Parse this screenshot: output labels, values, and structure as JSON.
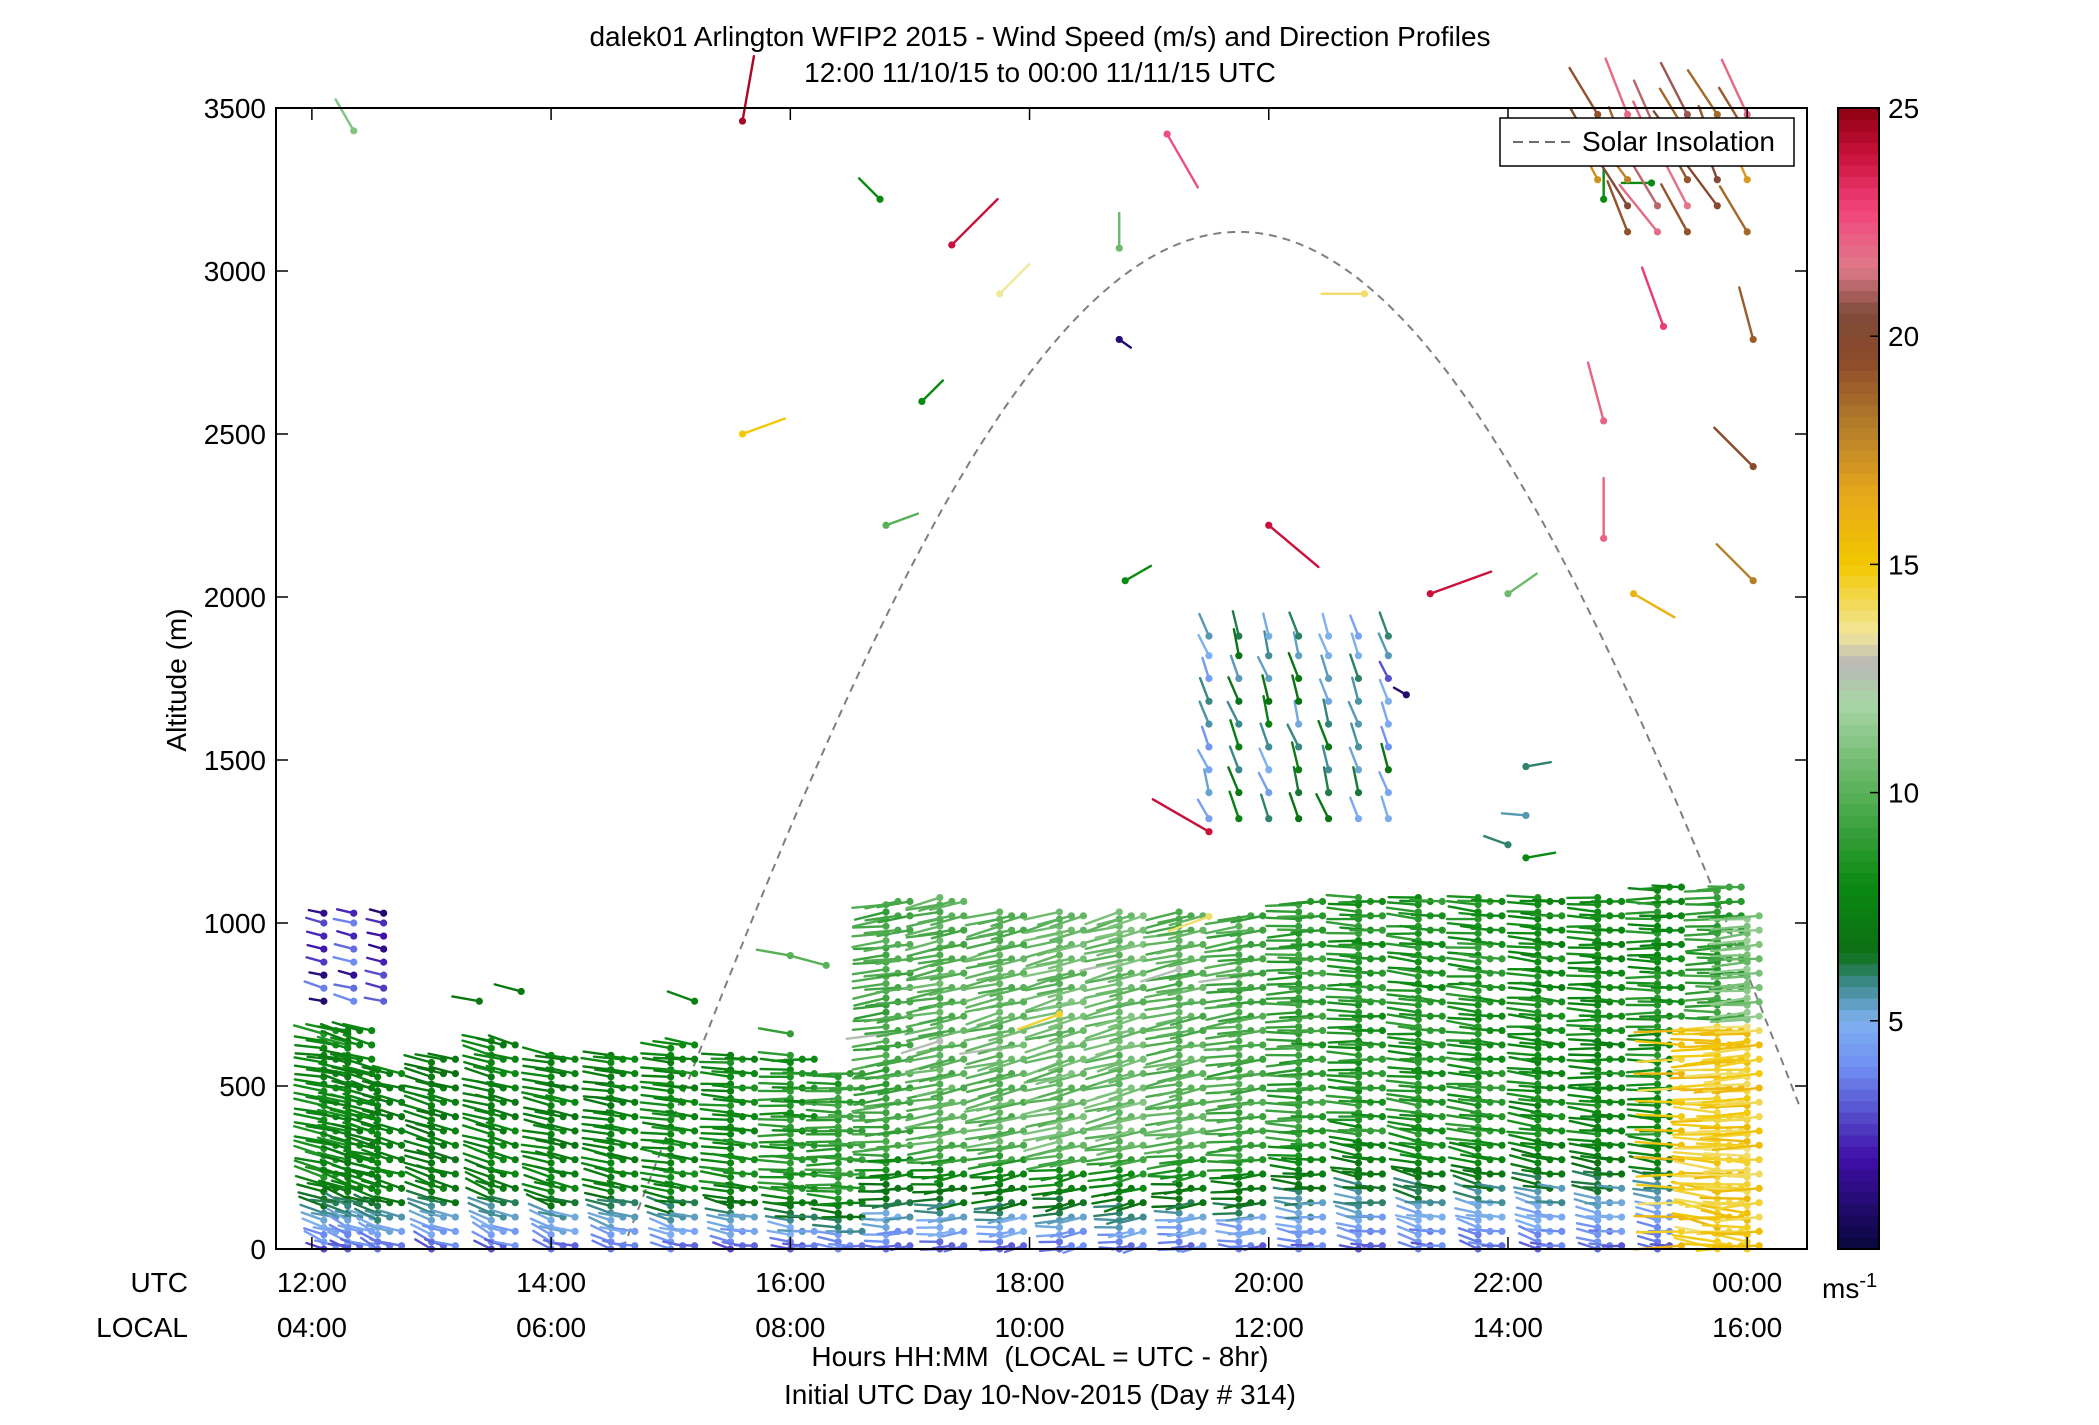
{
  "chart_data": {
    "type": "wind-barb-profile",
    "title": "dalek01 Arlington WFIP2 2015 - Wind Speed (m/s) and Direction Profiles",
    "subtitle": "12:00 11/10/15 to 00:00 11/11/15  UTC",
    "ylabel": "Altitude (m)",
    "xlabel": "Hours HH:MM  (LOCAL = UTC - 8hr)",
    "xlabel2": "Initial UTC Day 10-Nov-2015 (Day # 314)",
    "row_labels": {
      "utc": "UTC",
      "local": "LOCAL"
    },
    "x_ticks_utc": [
      "12:00",
      "14:00",
      "16:00",
      "18:00",
      "20:00",
      "22:00",
      "00:00"
    ],
    "x_ticks_local": [
      "04:00",
      "06:00",
      "08:00",
      "10:00",
      "12:00",
      "14:00",
      "16:00"
    ],
    "xlim_hours": [
      11.7,
      24.5
    ],
    "y_ticks": [
      "0",
      "500",
      "1000",
      "1500",
      "2000",
      "2500",
      "3000",
      "3500"
    ],
    "ylim": [
      0,
      3500
    ],
    "legend": {
      "label": "Solar Insolation",
      "placement": "top-right"
    },
    "colorbar": {
      "min": 0,
      "max": 25,
      "ticks": [
        "5",
        "10",
        "15",
        "20",
        "25"
      ],
      "unit": "ms",
      "unit_exp": "-1"
    },
    "solar_insolation_curve": {
      "peak_hour": 19.75,
      "peak_altitude": 3120,
      "zero_hours": [
        14.6,
        24.9
      ],
      "x_hours": [
        14.6,
        24.45
      ],
      "style": "dashed",
      "color": "#7f7f7f"
    },
    "barb_profiles": [
      {
        "hour": 12.1,
        "top": 680,
        "speed": 8.0,
        "dir": 280
      },
      {
        "hour": 12.3,
        "top": 660,
        "speed": 7.5,
        "dir": 285
      },
      {
        "hour": 12.55,
        "top": 560,
        "speed": 7.5,
        "dir": 285
      },
      {
        "hour": 13.0,
        "top": 590,
        "speed": 7.0,
        "dir": 285
      },
      {
        "hour": 13.5,
        "top": 640,
        "speed": 7.5,
        "dir": 285
      },
      {
        "hour": 14.0,
        "top": 600,
        "speed": 7.5,
        "dir": 282
      },
      {
        "hour": 14.5,
        "top": 600,
        "speed": 7.5,
        "dir": 280
      },
      {
        "hour": 15.0,
        "top": 620,
        "speed": 7.8,
        "dir": 278
      },
      {
        "hour": 15.5,
        "top": 610,
        "speed": 8.0,
        "dir": 276
      },
      {
        "hour": 16.0,
        "top": 610,
        "speed": 8.5,
        "dir": 272
      },
      {
        "hour": 16.4,
        "top": 540,
        "speed": 9.0,
        "dir": 270
      },
      {
        "hour": 16.8,
        "top": 1060,
        "speed": 9.5,
        "dir": 262
      },
      {
        "hour": 17.25,
        "top": 1080,
        "speed": 10.0,
        "dir": 258
      },
      {
        "hour": 17.75,
        "top": 1040,
        "speed": 10.2,
        "dir": 256
      },
      {
        "hour": 18.25,
        "top": 1050,
        "speed": 10.5,
        "dir": 255
      },
      {
        "hour": 18.75,
        "top": 1040,
        "speed": 10.5,
        "dir": 255
      },
      {
        "hour": 19.25,
        "top": 1050,
        "speed": 10.0,
        "dir": 258
      },
      {
        "hour": 19.75,
        "top": 1030,
        "speed": 9.5,
        "dir": 262
      },
      {
        "hour": 20.25,
        "top": 1060,
        "speed": 9.0,
        "dir": 268
      },
      {
        "hour": 20.75,
        "top": 1090,
        "speed": 8.5,
        "dir": 272
      },
      {
        "hour": 21.25,
        "top": 1080,
        "speed": 8.5,
        "dir": 275
      },
      {
        "hour": 21.75,
        "top": 1080,
        "speed": 8.5,
        "dir": 275
      },
      {
        "hour": 22.25,
        "top": 1080,
        "speed": 8.0,
        "dir": 275
      },
      {
        "hour": 22.75,
        "top": 1090,
        "speed": 8.0,
        "dir": 272
      },
      {
        "hour": 23.25,
        "top": 1100,
        "speed": 8.2,
        "dir": 270
      },
      {
        "hour": 23.75,
        "top": 1110,
        "speed": 9.0,
        "dir": 268
      },
      {
        "hour": 24.0,
        "top": 1020,
        "speed": 11.0,
        "dir": 265
      }
    ],
    "scattered_barbs": [
      {
        "hour": 12.35,
        "alt": 3430,
        "speed": 11.0,
        "dir": 330
      },
      {
        "hour": 15.6,
        "alt": 3460,
        "speed": 24.5,
        "dir": 10
      },
      {
        "hour": 16.75,
        "alt": 3220,
        "speed": 8.0,
        "dir": 315
      },
      {
        "hour": 17.35,
        "alt": 3080,
        "speed": 24.0,
        "dir": 45
      },
      {
        "hour": 17.75,
        "alt": 2930,
        "speed": 13.5,
        "dir": 45
      },
      {
        "hour": 18.75,
        "alt": 3070,
        "speed": 10.5,
        "dir": 0
      },
      {
        "hour": 18.75,
        "alt": 2790,
        "speed": 1.0,
        "dir": 125
      },
      {
        "hour": 19.15,
        "alt": 3420,
        "speed": 22.5,
        "dir": 150
      },
      {
        "hour": 17.1,
        "alt": 2600,
        "speed": 8.0,
        "dir": 45
      },
      {
        "hour": 15.6,
        "alt": 2500,
        "speed": 15.0,
        "dir": 70
      },
      {
        "hour": 16.8,
        "alt": 2220,
        "speed": 10.0,
        "dir": 70
      },
      {
        "hour": 18.8,
        "alt": 2050,
        "speed": 8.0,
        "dir": 60
      },
      {
        "hour": 20.0,
        "alt": 2220,
        "speed": 24.0,
        "dir": 130
      },
      {
        "hour": 20.8,
        "alt": 2930,
        "speed": 14.0,
        "dir": 270
      },
      {
        "hour": 21.35,
        "alt": 2010,
        "speed": 24.0,
        "dir": 70
      },
      {
        "hour": 22.0,
        "alt": 2010,
        "speed": 10.5,
        "dir": 55
      },
      {
        "hour": 23.05,
        "alt": 2010,
        "speed": 16.0,
        "dir": 120
      },
      {
        "hour": 22.8,
        "alt": 3220,
        "speed": 8.0,
        "dir": 0
      },
      {
        "hour": 23.2,
        "alt": 3270,
        "speed": 8.0,
        "dir": 270
      },
      {
        "hour": 23.3,
        "alt": 2830,
        "speed": 23.0,
        "dir": 340
      },
      {
        "hour": 22.8,
        "alt": 2540,
        "speed": 22.0,
        "dir": 345
      },
      {
        "hour": 22.8,
        "alt": 2180,
        "speed": 22.0,
        "dir": 0
      },
      {
        "hour": 24.05,
        "alt": 2400,
        "speed": 19.5,
        "dir": 315
      },
      {
        "hour": 24.05,
        "alt": 2050,
        "speed": 18.0,
        "dir": 315
      },
      {
        "hour": 24.05,
        "alt": 2790,
        "speed": 19.0,
        "dir": 345
      },
      {
        "hour": 21.15,
        "alt": 1700,
        "speed": 1.0,
        "dir": 300
      },
      {
        "hour": 19.5,
        "alt": 1280,
        "speed": 24.0,
        "dir": 300
      },
      {
        "hour": 22.0,
        "alt": 1240,
        "speed": 6.0,
        "dir": 290
      },
      {
        "hour": 22.15,
        "alt": 1330,
        "speed": 5.5,
        "dir": 275
      },
      {
        "hour": 22.15,
        "alt": 1200,
        "speed": 8.0,
        "dir": 80
      },
      {
        "hour": 22.15,
        "alt": 1480,
        "speed": 6.0,
        "dir": 80
      },
      {
        "hour": 13.4,
        "alt": 760,
        "speed": 7.0,
        "dir": 280
      },
      {
        "hour": 13.75,
        "alt": 790,
        "speed": 7.0,
        "dir": 285
      },
      {
        "hour": 15.2,
        "alt": 760,
        "speed": 7.5,
        "dir": 290
      },
      {
        "hour": 16.3,
        "alt": 870,
        "speed": 10.0,
        "dir": 285
      },
      {
        "hour": 16.0,
        "alt": 900,
        "speed": 10.0,
        "dir": 280
      },
      {
        "hour": 16.0,
        "alt": 660,
        "speed": 9.0,
        "dir": 280
      },
      {
        "hour": 18.25,
        "alt": 720,
        "speed": 14.5,
        "dir": 250
      },
      {
        "hour": 19.5,
        "alt": 1020,
        "speed": 14.0,
        "dir": 250
      }
    ],
    "early_cluster": {
      "hours": [
        12.1,
        12.35,
        12.6
      ],
      "alts": [
        760,
        800,
        840,
        880,
        920,
        960,
        1000,
        1030
      ],
      "speed_range": [
        1.0,
        4.0
      ],
      "dir": 285
    },
    "upper_cluster": {
      "hours": [
        19.5,
        19.75,
        20.0,
        20.25,
        20.5,
        20.75,
        21.0
      ],
      "alts": [
        1320,
        1400,
        1470,
        1540,
        1610,
        1680,
        1750,
        1820,
        1880
      ],
      "speed": 6.0,
      "dir": 340
    },
    "top_right_cluster": {
      "hours": [
        22.75,
        23.0,
        23.25,
        23.5,
        23.75,
        24.0
      ],
      "alts": [
        3120,
        3200,
        3280,
        3350,
        3420,
        3480
      ],
      "speed_range": [
        17.0,
        22.0
      ],
      "dir": 330
    }
  }
}
